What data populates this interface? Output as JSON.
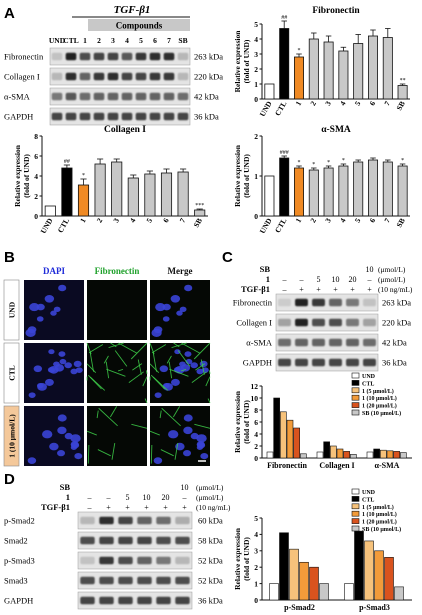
{
  "panels": {
    "A": {
      "letter": "A",
      "treatment": "TGF-β1",
      "compounds_label": "Compounds",
      "lanes": [
        "UND",
        "CTL",
        "1",
        "2",
        "3",
        "4",
        "5",
        "6",
        "7",
        "SB"
      ],
      "blots": [
        {
          "name": "Fibronectin",
          "size": "263 kDa",
          "levels": [
            0.15,
            0.9,
            0.7,
            0.75,
            0.75,
            0.65,
            0.8,
            0.85,
            0.85,
            0.2
          ]
        },
        {
          "name": "Collagen I",
          "size": "220 kDa",
          "levels": [
            0.2,
            0.85,
            0.6,
            0.8,
            0.85,
            0.75,
            0.75,
            0.8,
            0.8,
            0.2
          ]
        },
        {
          "name": "α-SMA",
          "size": "42 kDa",
          "levels": [
            0.5,
            0.65,
            0.55,
            0.6,
            0.6,
            0.6,
            0.6,
            0.6,
            0.6,
            0.55
          ]
        },
        {
          "name": "GAPDH",
          "size": "36 kDa",
          "levels": [
            0.75,
            0.75,
            0.75,
            0.75,
            0.75,
            0.75,
            0.75,
            0.75,
            0.75,
            0.75
          ]
        }
      ]
    },
    "B": {
      "letter": "B",
      "channels": [
        "DAPI",
        "Fibronectin",
        "Merge"
      ],
      "rows": [
        "UND",
        "CTL",
        "1 (10 μmol/L)"
      ]
    },
    "C": {
      "letter": "C",
      "conditions": [
        {
          "label": "SB",
          "values": [
            "",
            "",
            "",
            "",
            "",
            "10"
          ],
          "unit": "(μmol/L)"
        },
        {
          "label": "1",
          "values": [
            "–",
            "–",
            "5",
            "10",
            "20",
            "–"
          ],
          "unit": "(μmol/L)"
        },
        {
          "label": "TGF-β1",
          "values": [
            "–",
            "+",
            "+",
            "+",
            "+",
            "+"
          ],
          "unit": "(10 ng/mL)"
        }
      ],
      "blots": [
        {
          "name": "Fibronectin",
          "size": "263 kDa",
          "levels": [
            0.1,
            0.9,
            0.8,
            0.6,
            0.5,
            0.15
          ]
        },
        {
          "name": "Collagen I",
          "size": "220 kDa",
          "levels": [
            0.3,
            0.9,
            0.7,
            0.7,
            0.5,
            0.3
          ]
        },
        {
          "name": "α-SMA",
          "size": "42 kDa",
          "levels": [
            0.55,
            0.6,
            0.6,
            0.6,
            0.6,
            0.55
          ]
        },
        {
          "name": "GAPDH",
          "size": "36 kDa",
          "levels": [
            0.75,
            0.75,
            0.75,
            0.75,
            0.75,
            0.75
          ]
        }
      ]
    },
    "D": {
      "letter": "D",
      "conditions": [
        {
          "label": "SB",
          "values": [
            "",
            "",
            "",
            "",
            "",
            "10"
          ],
          "unit": "(μmol/L)"
        },
        {
          "label": "1",
          "values": [
            "–",
            "–",
            "5",
            "10",
            "20",
            "–"
          ],
          "unit": "(μmol/L)"
        },
        {
          "label": "TGF-β1",
          "values": [
            "–",
            "+",
            "+",
            "+",
            "+",
            "+"
          ],
          "unit": "(10 ng/mL)"
        }
      ],
      "blots": [
        {
          "name": "p-Smad2",
          "size": "60 kDa",
          "levels": [
            0.2,
            0.85,
            0.75,
            0.6,
            0.55,
            0.25
          ]
        },
        {
          "name": "Smad2",
          "size": "58 kDa",
          "levels": [
            0.7,
            0.75,
            0.75,
            0.75,
            0.7,
            0.7
          ]
        },
        {
          "name": "p-Smad3",
          "size": "52 kDa",
          "levels": [
            0.15,
            0.8,
            0.7,
            0.6,
            0.5,
            0.2
          ]
        },
        {
          "name": "Smad3",
          "size": "52 kDa",
          "levels": [
            0.7,
            0.7,
            0.7,
            0.7,
            0.7,
            0.7
          ]
        },
        {
          "name": "GAPDH",
          "size": "36 kDa",
          "levels": [
            0.75,
            0.75,
            0.75,
            0.75,
            0.75,
            0.75
          ]
        }
      ]
    }
  },
  "chart_data": [
    {
      "id": "fibronectin",
      "type": "bar",
      "title": "Fibronectin",
      "ylabel": [
        "Relative expression",
        "(fold of UND)"
      ],
      "categories": [
        "UND",
        "CTL",
        "1",
        "2",
        "3",
        "4",
        "5",
        "6",
        "7",
        "SB"
      ],
      "values": [
        1,
        4.7,
        2.8,
        4.0,
        3.8,
        3.2,
        3.7,
        4.2,
        4.1,
        0.9
      ],
      "errors": [
        0,
        0.5,
        0.2,
        0.4,
        0.4,
        0.25,
        0.6,
        0.4,
        0.6,
        0.1
      ],
      "annotations": [
        "",
        "##",
        "*",
        "",
        "",
        "",
        "",
        "",
        "",
        "**"
      ],
      "ylim": [
        0,
        5
      ],
      "yticks": [
        0,
        1,
        2,
        3,
        4,
        5
      ],
      "colors": [
        "#ffffff",
        "#000000",
        "#f08a24",
        "#c8c8c8",
        "#c8c8c8",
        "#c8c8c8",
        "#c8c8c8",
        "#c8c8c8",
        "#c8c8c8",
        "#c8c8c8"
      ]
    },
    {
      "id": "collagen",
      "type": "bar",
      "title": "Collagen I",
      "ylabel": [
        "Relative expression",
        "(fold of UND)"
      ],
      "categories": [
        "UND",
        "CTL",
        "1",
        "2",
        "3",
        "4",
        "5",
        "6",
        "7",
        "SB"
      ],
      "values": [
        1,
        4.8,
        3.1,
        5.2,
        5.4,
        3.8,
        4.2,
        4.3,
        4.4,
        0.6
      ],
      "errors": [
        0,
        0.3,
        0.6,
        0.5,
        0.3,
        0.3,
        0.3,
        0.4,
        0.3,
        0.1
      ],
      "annotations": [
        "",
        "##",
        "*",
        "",
        "",
        "",
        "",
        "",
        "",
        "***"
      ],
      "ylim": [
        0,
        8
      ],
      "yticks": [
        0,
        2,
        4,
        6,
        8
      ],
      "colors": [
        "#ffffff",
        "#000000",
        "#f08a24",
        "#c8c8c8",
        "#c8c8c8",
        "#c8c8c8",
        "#c8c8c8",
        "#c8c8c8",
        "#c8c8c8",
        "#c8c8c8"
      ]
    },
    {
      "id": "asma",
      "type": "bar",
      "title": "α-SMA",
      "ylabel": [
        "Relative expression",
        "(fold of UND)"
      ],
      "categories": [
        "UND",
        "CTL",
        "1",
        "2",
        "3",
        "4",
        "5",
        "6",
        "7",
        "SB"
      ],
      "values": [
        1,
        1.45,
        1.2,
        1.15,
        1.2,
        1.25,
        1.35,
        1.4,
        1.35,
        1.25
      ],
      "errors": [
        0,
        0.05,
        0.05,
        0.05,
        0.05,
        0.05,
        0.05,
        0.05,
        0.05,
        0.05
      ],
      "annotations": [
        "",
        "###",
        "*",
        "*",
        "*",
        "*",
        "",
        "",
        "",
        "*"
      ],
      "ylim": [
        0,
        2
      ],
      "yticks": [
        0,
        1,
        2
      ],
      "colors": [
        "#ffffff",
        "#000000",
        "#f08a24",
        "#c8c8c8",
        "#c8c8c8",
        "#c8c8c8",
        "#c8c8c8",
        "#c8c8c8",
        "#c8c8c8",
        "#c8c8c8"
      ]
    },
    {
      "id": "panelC",
      "type": "bar",
      "title": "",
      "ylabel": [
        "Relative expression",
        "(fold of UND)"
      ],
      "categories": [
        "Fibronectin",
        "Collagen I",
        "α-SMA"
      ],
      "series": [
        {
          "name": "UND",
          "values": [
            1,
            1,
            1
          ],
          "color": "#ffffff"
        },
        {
          "name": "CTL",
          "values": [
            10,
            2.7,
            1.5
          ],
          "color": "#000000"
        },
        {
          "name": "1 (5 μmol/L)",
          "values": [
            7.7,
            2.0,
            1.3
          ],
          "color": "#f6c27b"
        },
        {
          "name": "1 (10 μmol/L)",
          "values": [
            6.3,
            1.5,
            1.2
          ],
          "color": "#f29b3a"
        },
        {
          "name": "1 (20 μmol/L)",
          "values": [
            5,
            1.1,
            1.1
          ],
          "color": "#d9531e"
        },
        {
          "name": "SB (10 μmol/L)",
          "values": [
            0.7,
            0.6,
            0.9
          ],
          "color": "#c8c8c8"
        }
      ],
      "ylim": [
        0,
        12
      ],
      "yticks": [
        0,
        2,
        4,
        6,
        8,
        10,
        12
      ]
    },
    {
      "id": "panelD",
      "type": "bar",
      "title": "",
      "ylabel": [
        "Relative expression",
        "(fold of UND)"
      ],
      "categories": [
        "p-Smad2",
        "p-Smad3"
      ],
      "series": [
        {
          "name": "UND",
          "values": [
            1,
            1
          ],
          "color": "#ffffff"
        },
        {
          "name": "CTL",
          "values": [
            4.1,
            4.2
          ],
          "color": "#000000"
        },
        {
          "name": "1 (5 μmol/L)",
          "values": [
            3.1,
            3.6
          ],
          "color": "#f6c27b"
        },
        {
          "name": "1 (10 μmol/L)",
          "values": [
            2.3,
            3.0
          ],
          "color": "#f29b3a"
        },
        {
          "name": "1 (20 μmol/L)",
          "values": [
            2.0,
            2.6
          ],
          "color": "#d9531e"
        },
        {
          "name": "SB (10 μmol/L)",
          "values": [
            1.0,
            0.8
          ],
          "color": "#c8c8c8"
        }
      ],
      "ylim": [
        0,
        5
      ],
      "yticks": [
        0,
        1,
        2,
        3,
        4,
        5
      ]
    }
  ]
}
